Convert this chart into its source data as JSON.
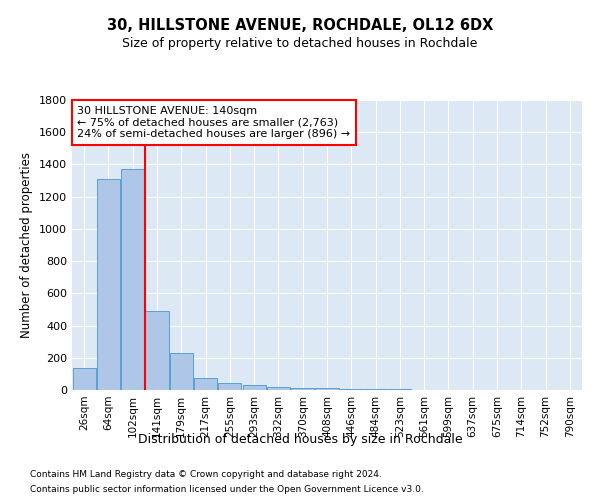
{
  "title": "30, HILLSTONE AVENUE, ROCHDALE, OL12 6DX",
  "subtitle": "Size of property relative to detached houses in Rochdale",
  "xlabel": "Distribution of detached houses by size in Rochdale",
  "ylabel": "Number of detached properties",
  "bar_labels": [
    "26sqm",
    "64sqm",
    "102sqm",
    "141sqm",
    "179sqm",
    "217sqm",
    "255sqm",
    "293sqm",
    "332sqm",
    "370sqm",
    "408sqm",
    "446sqm",
    "484sqm",
    "523sqm",
    "561sqm",
    "599sqm",
    "637sqm",
    "675sqm",
    "714sqm",
    "752sqm",
    "790sqm"
  ],
  "bar_values": [
    135,
    1310,
    1370,
    490,
    230,
    75,
    45,
    30,
    20,
    15,
    10,
    8,
    5,
    4,
    3,
    3,
    3,
    3,
    3,
    3,
    3
  ],
  "bar_color": "#aec6e8",
  "bar_edge_color": "#5a9fd4",
  "vline_index": 3,
  "vline_color": "red",
  "annotation_text": "30 HILLSTONE AVENUE: 140sqm\n← 75% of detached houses are smaller (2,763)\n24% of semi-detached houses are larger (896) →",
  "annotation_box_color": "white",
  "annotation_box_edge": "red",
  "ylim": [
    0,
    1800
  ],
  "yticks": [
    0,
    200,
    400,
    600,
    800,
    1000,
    1200,
    1400,
    1600,
    1800
  ],
  "bg_color": "#dde8f5",
  "footer1": "Contains HM Land Registry data © Crown copyright and database right 2024.",
  "footer2": "Contains public sector information licensed under the Open Government Licence v3.0."
}
